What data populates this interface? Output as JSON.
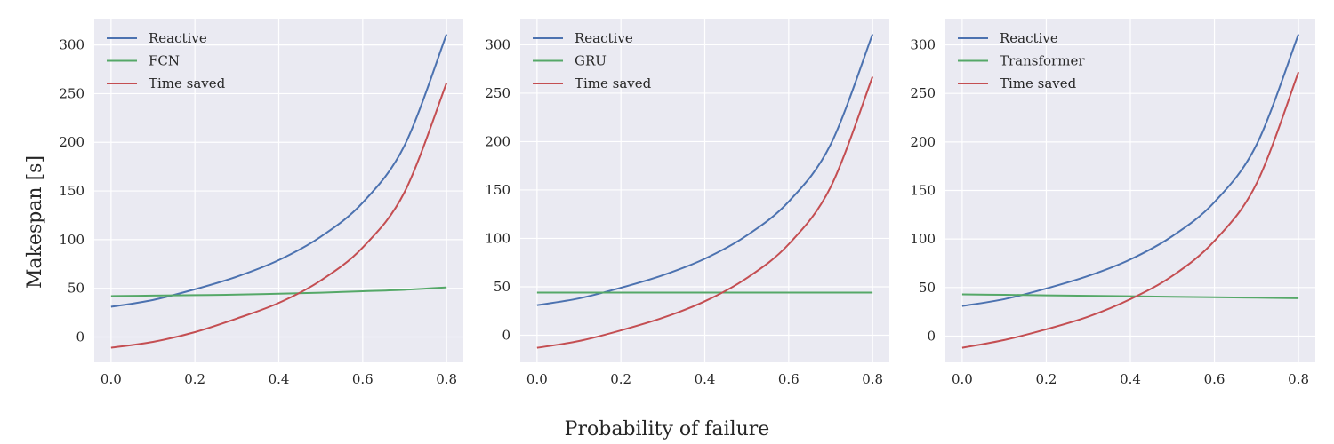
{
  "figure": {
    "xlabel": "Probability of failure",
    "ylabel": "Makespan [s]"
  },
  "chart_data": [
    {
      "type": "line",
      "x": [
        0.0,
        0.1,
        0.2,
        0.3,
        0.4,
        0.5,
        0.6,
        0.7,
        0.8
      ],
      "xlim": [
        -0.04,
        0.84
      ],
      "ylim": [
        -26,
        327
      ],
      "xticks": [
        "0.0",
        "0.2",
        "0.4",
        "0.6",
        "0.8"
      ],
      "yticks": [
        "0",
        "50",
        "100",
        "150",
        "200",
        "250",
        "300"
      ],
      "legend_position": "top-left",
      "grid": true,
      "series": [
        {
          "name": "Reactive",
          "color": "#4c72b0",
          "values": [
            31,
            38,
            49,
            62,
            79,
            103,
            138,
            197,
            311
          ]
        },
        {
          "name": "FCN",
          "color": "#55a868",
          "values": [
            42,
            42.5,
            43,
            43.5,
            44.5,
            45.5,
            47,
            48.5,
            51
          ]
        },
        {
          "name": "Time saved",
          "color": "#c44e52",
          "values": [
            -11,
            -5,
            5,
            19,
            35,
            58,
            92,
            149,
            261
          ]
        }
      ]
    },
    {
      "type": "line",
      "x": [
        0.0,
        0.1,
        0.2,
        0.3,
        0.4,
        0.5,
        0.6,
        0.7,
        0.8
      ],
      "xlim": [
        -0.04,
        0.84
      ],
      "ylim": [
        -28,
        327
      ],
      "xticks": [
        "0.0",
        "0.2",
        "0.4",
        "0.6",
        "0.8"
      ],
      "yticks": [
        "0",
        "50",
        "100",
        "150",
        "200",
        "250",
        "300"
      ],
      "legend_position": "top-left",
      "grid": true,
      "series": [
        {
          "name": "Reactive",
          "color": "#4c72b0",
          "values": [
            31,
            38,
            49,
            62,
            79,
            103,
            138,
            197,
            311
          ]
        },
        {
          "name": "GRU",
          "color": "#55a868",
          "values": [
            44,
            44,
            44,
            44,
            44,
            44,
            44,
            44,
            44
          ]
        },
        {
          "name": "Time saved",
          "color": "#c44e52",
          "values": [
            -13,
            -6,
            5,
            18,
            35,
            59,
            94,
            153,
            267
          ]
        }
      ]
    },
    {
      "type": "line",
      "x": [
        0.0,
        0.1,
        0.2,
        0.3,
        0.4,
        0.5,
        0.6,
        0.7,
        0.8
      ],
      "xlim": [
        -0.04,
        0.84
      ],
      "ylim": [
        -27,
        327
      ],
      "xticks": [
        "0.0",
        "0.2",
        "0.4",
        "0.6",
        "0.8"
      ],
      "yticks": [
        "0",
        "50",
        "100",
        "150",
        "200",
        "250",
        "300"
      ],
      "legend_position": "top-left",
      "grid": true,
      "series": [
        {
          "name": "Reactive",
          "color": "#4c72b0",
          "values": [
            31,
            38,
            49,
            62,
            79,
            103,
            138,
            197,
            311
          ]
        },
        {
          "name": "Transformer",
          "color": "#55a868",
          "values": [
            43,
            42.5,
            42,
            41.5,
            41,
            40.5,
            40,
            39.5,
            39
          ]
        },
        {
          "name": "Time saved",
          "color": "#c44e52",
          "values": [
            -12,
            -4,
            7,
            20,
            38,
            62,
            98,
            157,
            272
          ]
        }
      ]
    }
  ]
}
